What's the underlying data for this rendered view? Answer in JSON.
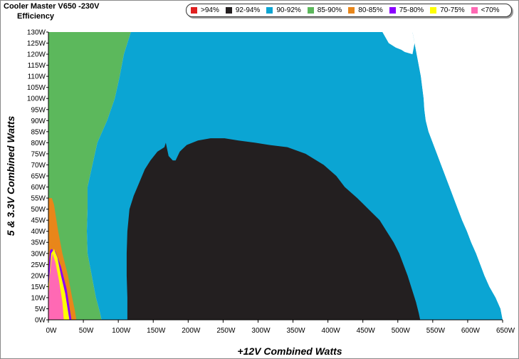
{
  "window": {
    "title": "Cooler Master V650 -230V",
    "subtitle": "Efficiency"
  },
  "legend": [
    {
      "label": ">94%",
      "color": "#e02020"
    },
    {
      "label": "92-94%",
      "color": "#231f20"
    },
    {
      "label": "90-92%",
      "color": "#0ba5d3"
    },
    {
      "label": "85-90%",
      "color": "#5cb85c"
    },
    {
      "label": "80-85%",
      "color": "#e8861a"
    },
    {
      "label": "75-80%",
      "color": "#8b00ff"
    },
    {
      "label": "70-75%",
      "color": "#ffff00"
    },
    {
      "label": "<70%",
      "color": "#ff69b4"
    }
  ],
  "chart_data": {
    "type": "heatmap",
    "title": "Cooler Master V650 -230V",
    "subtitle": "Efficiency",
    "xlabel": "+12V Combined Watts",
    "ylabel": "5 & 3.3V Combined Watts",
    "xlim": [
      0,
      650
    ],
    "ylim": [
      0,
      130
    ],
    "x_ticks": [
      "0W",
      "50W",
      "100W",
      "150W",
      "200W",
      "250W",
      "300W",
      "350W",
      "400W",
      "450W",
      "500W",
      "550W",
      "600W",
      "650W"
    ],
    "y_ticks": [
      "0W",
      "5W",
      "10W",
      "15W",
      "20W",
      "25W",
      "30W",
      "35W",
      "40W",
      "45W",
      "50W",
      "55W",
      "60W",
      "65W",
      "70W",
      "75W",
      "80W",
      "85W",
      "90W",
      "95W",
      "100W",
      "105W",
      "110W",
      "115W",
      "120W",
      "125W",
      "130W"
    ],
    "max_load_edge": [
      [
        0,
        650
      ],
      [
        5,
        647
      ],
      [
        10,
        640
      ],
      [
        15,
        631
      ],
      [
        20,
        624
      ],
      [
        25,
        618
      ],
      [
        30,
        612
      ],
      [
        35,
        605
      ],
      [
        40,
        599
      ],
      [
        45,
        592
      ],
      [
        50,
        586
      ],
      [
        55,
        580
      ],
      [
        60,
        574
      ],
      [
        65,
        568
      ],
      [
        70,
        562
      ],
      [
        75,
        556
      ],
      [
        80,
        550
      ],
      [
        85,
        544
      ],
      [
        90,
        540
      ],
      [
        95,
        538
      ],
      [
        100,
        537
      ],
      [
        105,
        535
      ],
      [
        110,
        533
      ],
      [
        115,
        530
      ],
      [
        120,
        527
      ],
      [
        125,
        524
      ],
      [
        130,
        521
      ]
    ],
    "regions": [
      {
        "range": "<70%",
        "points": [
          [
            0,
            0
          ],
          [
            0,
            10
          ],
          [
            2,
            20
          ],
          [
            4,
            26
          ],
          [
            6,
            30
          ],
          [
            10,
            26
          ],
          [
            15,
            18
          ],
          [
            20,
            8
          ],
          [
            22,
            0
          ]
        ]
      },
      {
        "range": "70-75%",
        "points": [
          [
            0,
            0
          ],
          [
            0,
            14
          ],
          [
            2,
            22
          ],
          [
            4,
            30
          ],
          [
            8,
            32
          ],
          [
            13,
            28
          ],
          [
            18,
            20
          ],
          [
            24,
            12
          ],
          [
            28,
            4
          ],
          [
            30,
            0
          ]
        ]
      },
      {
        "range": "75-80%",
        "points": [
          [
            0,
            0
          ],
          [
            0,
            20
          ],
          [
            2,
            31
          ],
          [
            4,
            32
          ],
          [
            10,
            31
          ],
          [
            18,
            24
          ],
          [
            26,
            14
          ],
          [
            31,
            4
          ],
          [
            33,
            0
          ]
        ]
      },
      {
        "range": "80-85%",
        "points": [
          [
            0,
            0
          ],
          [
            0,
            55
          ],
          [
            5,
            55
          ],
          [
            8,
            52
          ],
          [
            10,
            48
          ],
          [
            14,
            40
          ],
          [
            20,
            30
          ],
          [
            28,
            20
          ],
          [
            34,
            10
          ],
          [
            38,
            4
          ],
          [
            40,
            0
          ]
        ]
      },
      {
        "range": "85-90%",
        "points": [
          [
            0,
            0
          ],
          [
            0,
            130
          ],
          [
            118,
            130
          ],
          [
            108,
            120
          ],
          [
            102,
            110
          ],
          [
            95,
            100
          ],
          [
            84,
            90
          ],
          [
            70,
            80
          ],
          [
            63,
            70
          ],
          [
            56,
            60
          ],
          [
            56,
            50
          ],
          [
            55,
            40
          ],
          [
            56,
            30
          ],
          [
            62,
            20
          ],
          [
            68,
            10
          ],
          [
            74,
            3
          ],
          [
            76,
            0
          ]
        ]
      },
      {
        "range": "90-92%",
        "points": [
          [
            76,
            0
          ],
          [
            74,
            3
          ],
          [
            68,
            10
          ],
          [
            62,
            20
          ],
          [
            56,
            30
          ],
          [
            55,
            40
          ],
          [
            56,
            50
          ],
          [
            56,
            60
          ],
          [
            63,
            70
          ],
          [
            70,
            80
          ],
          [
            84,
            90
          ],
          [
            95,
            100
          ],
          [
            102,
            110
          ],
          [
            108,
            120
          ],
          [
            118,
            130
          ],
          [
            478,
            130
          ],
          [
            487,
            125
          ],
          [
            497,
            123
          ],
          [
            505,
            122
          ],
          [
            510,
            121
          ],
          [
            521,
            120
          ],
          [
            524,
            125
          ],
          [
            524,
            130
          ],
          [
            521,
            130
          ],
          [
            524,
            125
          ],
          [
            527,
            120
          ],
          [
            530,
            115
          ],
          [
            533,
            110
          ],
          [
            535,
            105
          ],
          [
            537,
            100
          ],
          [
            538,
            95
          ],
          [
            540,
            90
          ],
          [
            544,
            85
          ],
          [
            550,
            80
          ],
          [
            556,
            75
          ],
          [
            562,
            70
          ],
          [
            568,
            65
          ],
          [
            574,
            60
          ],
          [
            580,
            55
          ],
          [
            586,
            50
          ],
          [
            592,
            45
          ],
          [
            599,
            40
          ],
          [
            605,
            35
          ],
          [
            612,
            30
          ],
          [
            618,
            25
          ],
          [
            624,
            20
          ],
          [
            631,
            15
          ],
          [
            640,
            10
          ],
          [
            647,
            5
          ],
          [
            650,
            0
          ]
        ]
      },
      {
        "range": "92-94%",
        "points": [
          [
            113,
            0
          ],
          [
            113,
            10
          ],
          [
            112,
            20
          ],
          [
            112,
            30
          ],
          [
            113,
            40
          ],
          [
            116,
            50
          ],
          [
            122,
            56
          ],
          [
            130,
            62
          ],
          [
            138,
            68
          ],
          [
            146,
            72
          ],
          [
            156,
            76
          ],
          [
            166,
            78
          ],
          [
            168,
            80
          ],
          [
            170,
            77
          ],
          [
            172,
            74
          ],
          [
            178,
            72
          ],
          [
            182,
            72
          ],
          [
            188,
            76
          ],
          [
            198,
            79
          ],
          [
            214,
            81
          ],
          [
            232,
            82
          ],
          [
            252,
            82
          ],
          [
            272,
            81
          ],
          [
            296,
            80
          ],
          [
            316,
            79
          ],
          [
            342,
            78
          ],
          [
            368,
            75
          ],
          [
            394,
            70
          ],
          [
            412,
            65
          ],
          [
            424,
            60
          ],
          [
            442,
            55
          ],
          [
            458,
            50
          ],
          [
            474,
            45
          ],
          [
            484,
            40
          ],
          [
            494,
            35
          ],
          [
            502,
            30
          ],
          [
            508,
            25
          ],
          [
            514,
            20
          ],
          [
            520,
            14
          ],
          [
            526,
            8
          ],
          [
            530,
            3
          ],
          [
            532,
            0
          ]
        ]
      }
    ],
    "grid": false,
    "legend_position": "top-right"
  }
}
